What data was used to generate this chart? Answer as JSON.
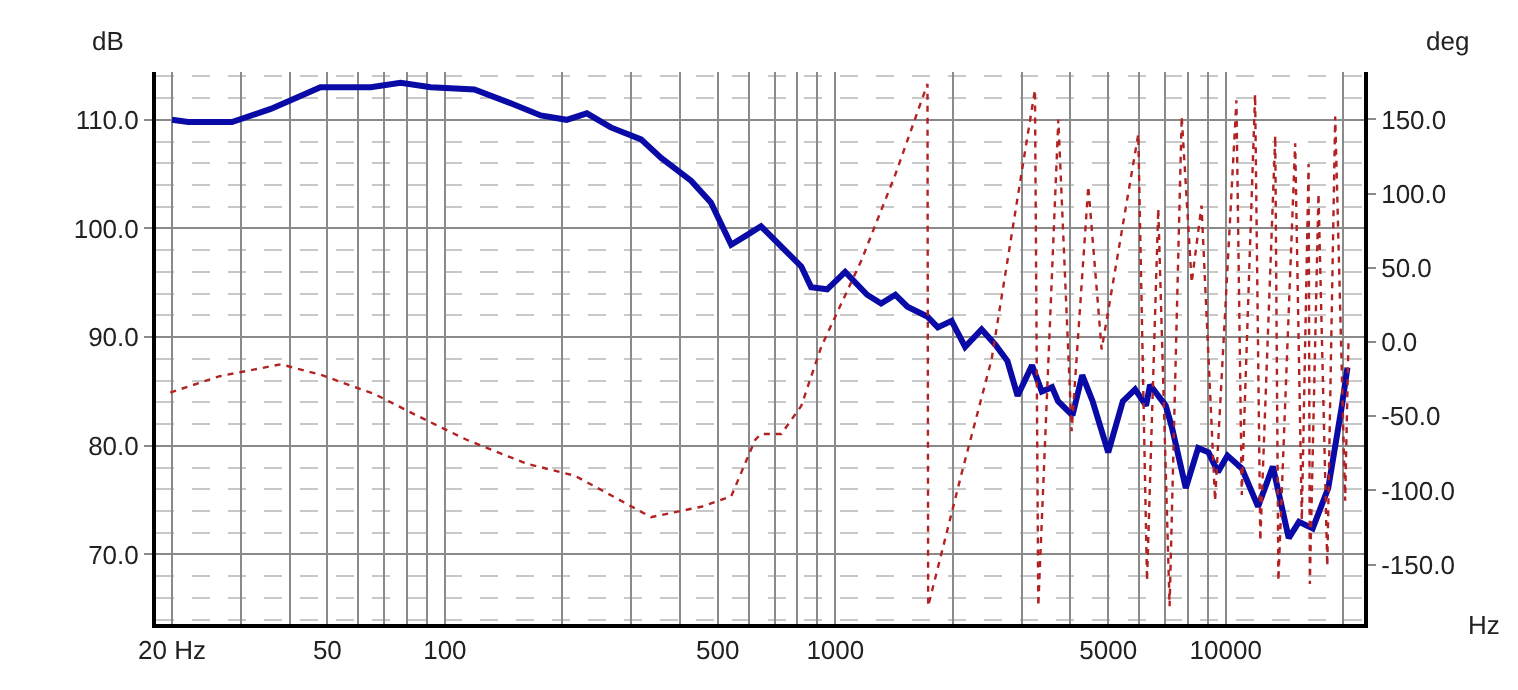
{
  "chart_data": {
    "type": "line",
    "xlabel": "Hz",
    "ylabel": "dB",
    "y2label": "deg",
    "log": "x",
    "grid": true,
    "xlim": [
      18.2,
      22600
    ],
    "ylim": [
      63.6,
      114.4
    ],
    "y2lim": [
      -190,
      182
    ],
    "xticks": [
      {
        "value": 20,
        "label": "20 Hz"
      },
      {
        "value": 30,
        "label": null
      },
      {
        "value": 40,
        "label": null
      },
      50,
      {
        "value": 60,
        "label": null
      },
      {
        "value": 70,
        "label": null
      },
      {
        "value": 80,
        "label": null
      },
      {
        "value": 90,
        "label": null
      },
      100,
      {
        "value": 200,
        "label": null
      },
      {
        "value": 300,
        "label": null
      },
      {
        "value": 400,
        "label": null
      },
      500,
      {
        "value": 600,
        "label": null
      },
      {
        "value": 700,
        "label": null
      },
      {
        "value": 800,
        "label": null
      },
      {
        "value": 900,
        "label": null
      },
      1000,
      {
        "value": 2000,
        "label": null
      },
      {
        "value": 3000,
        "label": null
      },
      {
        "value": 4000,
        "label": null
      },
      5000,
      {
        "value": 6000,
        "label": null
      },
      {
        "value": 7000,
        "label": null
      },
      {
        "value": 8000,
        "label": null
      },
      {
        "value": 9000,
        "label": null
      },
      10000,
      {
        "value": 20000,
        "label": null
      }
    ],
    "yticks": [
      {
        "value": 70,
        "label": "70.0"
      },
      {
        "value": 80,
        "label": "80.0"
      },
      {
        "value": 90,
        "label": "90.0"
      },
      {
        "value": 100,
        "label": "100.0"
      },
      {
        "value": 110,
        "label": "110.0"
      }
    ],
    "y2ticks": [
      {
        "value": -150,
        "label": "-150.0"
      },
      {
        "value": -100,
        "label": "-100.0"
      },
      {
        "value": -50,
        "label": "-50.0"
      },
      {
        "value": 0,
        "label": "0.0"
      },
      {
        "value": 50,
        "label": "50.0"
      },
      {
        "value": 100,
        "label": "100.0"
      },
      {
        "value": 150,
        "label": "150.0"
      }
    ],
    "series": [
      {
        "color": "#0a0aa6",
        "line_style": "solid",
        "x": [
          20,
          22,
          28.5,
          35.8,
          48,
          64.6,
          77,
          92,
          119,
          148,
          176,
          205,
          231,
          266,
          318,
          358,
          427,
          480,
          541,
          588,
          645,
          818,
          867,
          953,
          1060,
          1206,
          1310,
          1425,
          1530,
          1720,
          1830,
          1985,
          2150,
          2370,
          2570,
          2760,
          2930,
          3190,
          3380,
          3590,
          3720,
          4050,
          4290,
          4560,
          5000,
          5450,
          5860,
          6250,
          6400,
          7020,
          7280,
          7900,
          8500,
          9030,
          9550,
          10100,
          11000,
          12100,
          13200,
          14500,
          15400,
          16700,
          18300,
          19800,
          20500
        ],
        "values": [
          110,
          109.8,
          109.8,
          111,
          113,
          113,
          113.4,
          113,
          112.8,
          111.5,
          110.4,
          110,
          110.6,
          109.3,
          108.2,
          106.5,
          104.4,
          102.4,
          98.5,
          99.3,
          100.2,
          96.5,
          94.6,
          94.4,
          96,
          93.9,
          93.1,
          93.9,
          92.8,
          91.9,
          90.9,
          91.5,
          89.1,
          90.7,
          89.3,
          87.8,
          84.6,
          87.4,
          85,
          85.4,
          84.1,
          82.8,
          86.5,
          84.1,
          79.4,
          84.1,
          85.2,
          83.7,
          85.6,
          83.7,
          81.7,
          76.1,
          79.8,
          79.4,
          77.6,
          79.1,
          77.9,
          74.4,
          78.1,
          71.5,
          73,
          72.4,
          76.1,
          83.5,
          87.2
        ]
      },
      {
        "color": "#b22222",
        "line_style": "dotted",
        "axis": "y2",
        "x": [
          19.8,
          26.5,
          38,
          48,
          66,
          84,
          114,
          162,
          215,
          283,
          337,
          453,
          541,
          623,
          645,
          727,
          818,
          921,
          1166,
          1425,
          1722,
          1729,
          2104,
          2512,
          3246,
          3310,
          3726,
          4030,
          4446,
          4810,
          5970,
          6286,
          6717,
          7181,
          7712,
          8180,
          8670,
          9390,
          10650,
          10990,
          11890,
          12260,
          13390,
          13640,
          15060,
          15660,
          16300,
          16420,
          17280,
          18200,
          19070,
          20220,
          20620
        ],
        "values": [
          -34,
          -23,
          -15,
          -22,
          -35,
          -49,
          -66,
          -82,
          -90,
          -107,
          -118,
          -111,
          -104,
          -66,
          -62,
          -62,
          -43,
          -3,
          55,
          113,
          174,
          -178,
          -89,
          -12,
          170,
          -178,
          150,
          -60,
          105,
          -5,
          140,
          -161,
          90,
          -178,
          152,
          40,
          92,
          -107,
          163,
          -103,
          167,
          -134,
          139,
          -161,
          134,
          -120,
          120,
          -163,
          100,
          -151,
          152,
          -107,
          0
        ]
      }
    ]
  }
}
